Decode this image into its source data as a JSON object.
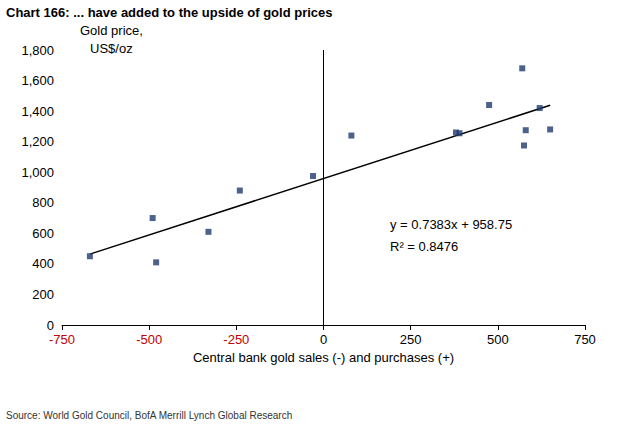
{
  "chart_data": {
    "type": "scatter",
    "title": "Chart 166: ... have added to the upside of gold prices",
    "x_label": "Central bank gold sales (-) and purchases (+)",
    "y_label": "Gold price,\nUS$/oz",
    "source": "Source: World Gold Council, BofA Merrill Lynch Global Research",
    "annotations": [
      "y = 0.7383x + 958.75",
      "R² = 0.8476"
    ],
    "x": [
      -670,
      -490,
      -480,
      -330,
      -240,
      -30,
      80,
      380,
      390,
      475,
      570,
      575,
      580,
      620,
      650
    ],
    "values": [
      450,
      700,
      410,
      610,
      880,
      975,
      1240,
      1260,
      1255,
      1440,
      1680,
      1175,
      1275,
      1420,
      1280
    ],
    "color": "#1f3a6e",
    "marker": "square",
    "trend": {
      "x": [
        -670,
        650
      ],
      "values": [
        464.09,
        1438.65
      ],
      "color": "#000000",
      "line_style": "solid"
    },
    "xlim": [
      -750,
      750
    ],
    "xticks": [
      -750,
      -500,
      -250,
      0,
      250,
      500,
      750
    ],
    "ylim": [
      0,
      1800
    ],
    "yticks": [
      0,
      200,
      400,
      600,
      800,
      {
        "value": 1000,
        "label": "1,000"
      },
      {
        "value": 1200,
        "label": "1,200"
      },
      {
        "value": 1400,
        "label": "1,400"
      },
      {
        "value": 1600,
        "label": "1,600"
      },
      {
        "value": 1800,
        "label": "1,800"
      }
    ],
    "grid": false
  }
}
